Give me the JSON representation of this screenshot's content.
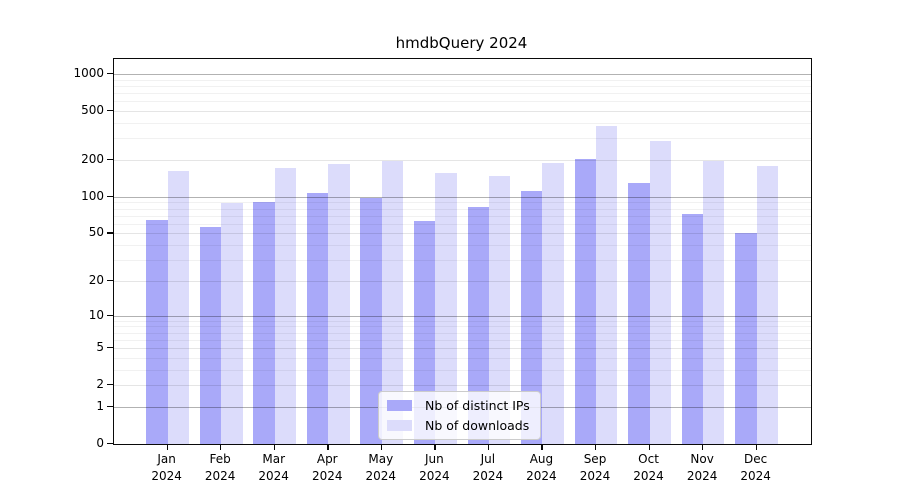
{
  "title": "hmdbQuery 2024",
  "chart_data": {
    "type": "bar",
    "title": "hmdbQuery 2024",
    "categories": [
      "Jan 2024",
      "Feb 2024",
      "Mar 2024",
      "Apr 2024",
      "May 2024",
      "Jun 2024",
      "Jul 2024",
      "Aug 2024",
      "Sep 2024",
      "Oct 2024",
      "Nov 2024",
      "Dec 2024"
    ],
    "series": [
      {
        "name": "Nb of distinct IPs",
        "color": "#a9a9f9",
        "values": [
          65,
          57,
          91,
          108,
          97,
          63,
          83,
          112,
          205,
          131,
          72,
          50
        ]
      },
      {
        "name": "Nb of downloads",
        "color": "#dcdcfb",
        "values": [
          162,
          89,
          173,
          186,
          195,
          158,
          147,
          188,
          380,
          285,
          195,
          180
        ]
      }
    ],
    "xlabel": "",
    "ylabel": "",
    "yscale": "pseudo-log: position proportional to log10(value+1)",
    "yticks": [
      0,
      1,
      2,
      5,
      10,
      20,
      50,
      100,
      200,
      500,
      1000
    ],
    "ylim": [
      0,
      1300
    ],
    "grid": true,
    "grid_on_top_of_bars": true,
    "legend_position": "lower center"
  },
  "legend": {
    "items": [
      {
        "label": "Nb of distinct IPs",
        "color": "#a9a9f9"
      },
      {
        "label": "Nb of downloads",
        "color": "#dcdcfb"
      }
    ]
  }
}
